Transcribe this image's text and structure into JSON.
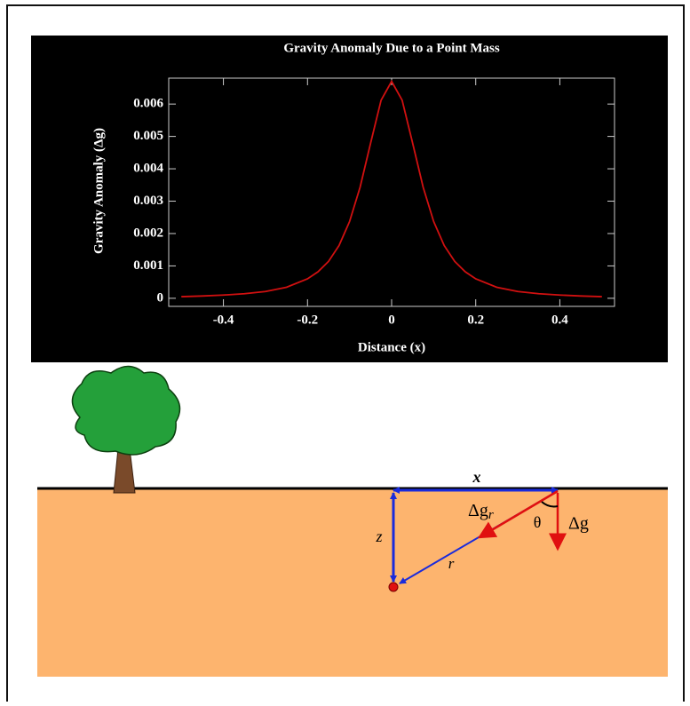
{
  "chart_data": {
    "type": "line",
    "title": "Gravity Anomaly Due to a Point Mass",
    "x_label": "Distance (x)",
    "y_label": "Gravity Anomaly (Δg)",
    "x": [
      -0.5,
      -0.45,
      -0.4,
      -0.35,
      -0.3,
      -0.25,
      -0.2,
      -0.175,
      -0.15,
      -0.125,
      -0.1,
      -0.075,
      -0.05,
      -0.025,
      0,
      0.025,
      0.05,
      0.075,
      0.1,
      0.125,
      0.15,
      0.175,
      0.2,
      0.25,
      0.3,
      0.35,
      0.4,
      0.45,
      0.5
    ],
    "values": [
      5e-05,
      7e-05,
      0.0001,
      0.00014,
      0.00021,
      0.00034,
      0.0006,
      0.00082,
      0.00114,
      0.00163,
      0.00237,
      0.00343,
      0.00479,
      0.00612,
      0.0067,
      0.00612,
      0.00479,
      0.00343,
      0.00237,
      0.00163,
      0.00114,
      0.00082,
      0.0006,
      0.00034,
      0.00021,
      0.00014,
      0.0001,
      7e-05,
      5e-05
    ],
    "color": "#d01010",
    "xlim": [
      -0.53,
      0.53
    ],
    "xticks": [
      -0.4,
      -0.2,
      0,
      0.2,
      0.4
    ],
    "ylim": [
      -0.00025,
      0.0068
    ],
    "yticks": [
      0,
      0.001,
      0.002,
      0.003,
      0.004,
      0.005,
      0.006
    ]
  },
  "diagram": {
    "x": "x",
    "z": "z",
    "r": "r",
    "theta": "θ",
    "dg": "Δg",
    "dgr": "Δg",
    "dgr_sub": "r"
  }
}
